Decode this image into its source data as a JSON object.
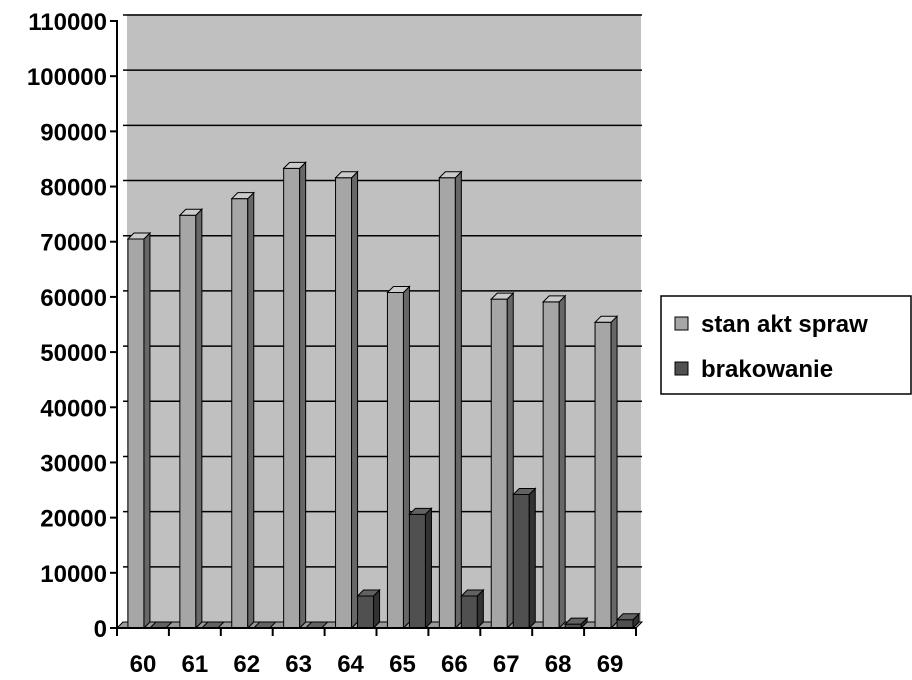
{
  "chart_data": {
    "type": "bar",
    "style": "3d-clustered",
    "title": "",
    "xlabel": "",
    "ylabel": "",
    "categories": [
      "60",
      "61",
      "62",
      "63",
      "64",
      "65",
      "66",
      "67",
      "68",
      "69"
    ],
    "series": [
      {
        "name": "stan akt spraw",
        "color": "#a6a6a6",
        "values": [
          70500,
          74800,
          77800,
          83300,
          81600,
          60800,
          81600,
          59600,
          59100,
          55400
        ]
      },
      {
        "name": "brakowanie",
        "color": "#505050",
        "values": [
          0,
          0,
          0,
          0,
          5800,
          20600,
          5800,
          24200,
          700,
          1500
        ]
      }
    ],
    "ylim": [
      0,
      110000
    ],
    "yticks": [
      "0",
      "10000",
      "20000",
      "30000",
      "40000",
      "50000",
      "60000",
      "70000",
      "80000",
      "90000",
      "100000",
      "110000"
    ],
    "grid": true,
    "plot_background": "#c0c0c0",
    "legend_position": "right"
  }
}
